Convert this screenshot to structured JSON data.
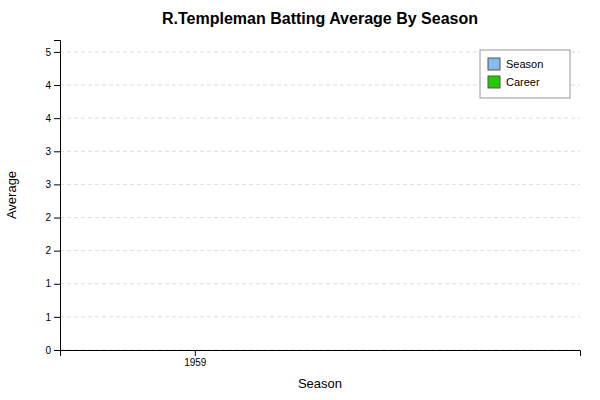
{
  "chart_data": {
    "type": "bar",
    "title": "R.Templeman Batting Average By Season",
    "xlabel": "Season",
    "ylabel": "Average",
    "x": [],
    "series": [
      {
        "name": "Season",
        "color": "#88bbee",
        "values": []
      },
      {
        "name": "Career",
        "color": "#22cc00",
        "values": []
      }
    ],
    "xlim": [
      1958.3,
      1961.0
    ],
    "xticks": [
      1959
    ],
    "ylim": [
      0,
      5.2
    ],
    "yticks": [
      0,
      {
        "value": 0.556,
        "label": "1"
      },
      {
        "value": 1.111,
        "label": "1"
      },
      {
        "value": 1.667,
        "label": "2"
      },
      {
        "value": 2.222,
        "label": "2"
      },
      {
        "value": 2.778,
        "label": "3"
      },
      {
        "value": 3.333,
        "label": "3"
      },
      {
        "value": 3.889,
        "label": "4"
      },
      {
        "value": 4.444,
        "label": "4"
      },
      5
    ],
    "grid": "y",
    "legend": "upper right"
  }
}
